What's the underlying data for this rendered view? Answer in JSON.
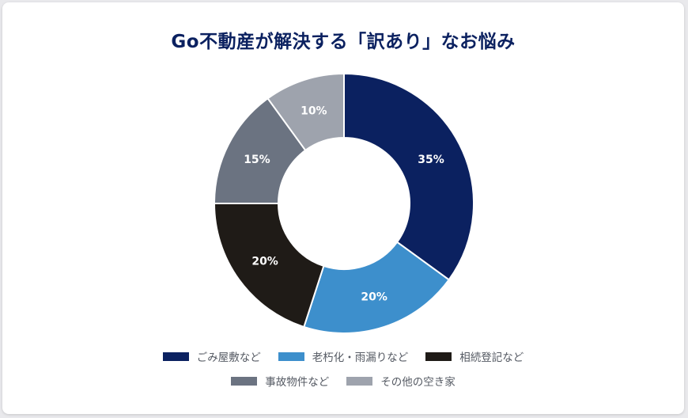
{
  "chart_data": {
    "type": "pie",
    "title": "Go不動産が解決する「訳あり」なお悩み",
    "categories": [
      "ごみ屋敷など",
      "老朽化・雨漏りなど",
      "相続登記など",
      "事故物件など",
      "その他の空き家"
    ],
    "values": [
      35,
      20,
      20,
      15,
      10
    ],
    "value_labels": [
      "35%",
      "20%",
      "20%",
      "15%",
      "10%"
    ],
    "colors": [
      "#0b2160",
      "#3d8fcc",
      "#1f1b17",
      "#6b7381",
      "#9ea3ad"
    ],
    "donut": true,
    "legend_position": "bottom"
  }
}
